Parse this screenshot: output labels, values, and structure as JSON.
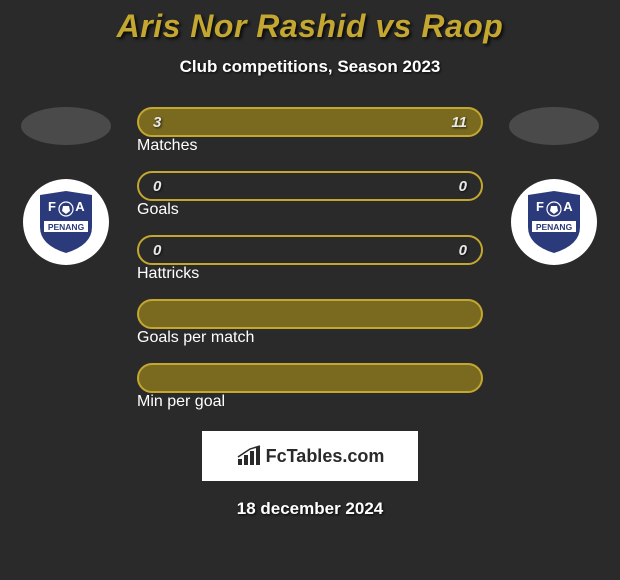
{
  "title": {
    "text": "Aris Nor Rashid vs Raop",
    "color": "#c4a730",
    "fontsize": 32
  },
  "subtitle": {
    "text": "Club competitions, Season 2023",
    "color": "#ffffff",
    "fontsize": 17
  },
  "players": {
    "left": {
      "oval_color": "#4a4a4a"
    },
    "right": {
      "oval_color": "#4a4a4a"
    }
  },
  "badge": {
    "bg": "#ffffff",
    "shield_fill": "#2b3a7a",
    "shield_text_top1": "F",
    "shield_text_top2": "A",
    "shield_text_bottom": "PENANG"
  },
  "bars": [
    {
      "label": "Matches",
      "left": "3",
      "right": "11",
      "fill": "#7a6a1f",
      "border": "#c4a730"
    },
    {
      "label": "Goals",
      "left": "0",
      "right": "0",
      "fill": "transparent",
      "border": "#c4a730"
    },
    {
      "label": "Hattricks",
      "left": "0",
      "right": "0",
      "fill": "transparent",
      "border": "#c4a730"
    },
    {
      "label": "Goals per match",
      "left": "",
      "right": "",
      "fill": "#7a6a1f",
      "border": "#c4a730"
    },
    {
      "label": "Min per goal",
      "left": "",
      "right": "",
      "fill": "#7a6a1f",
      "border": "#c4a730"
    }
  ],
  "logo": {
    "text": "FcTables.com",
    "bg": "#ffffff",
    "color": "#2a2a2a"
  },
  "date": {
    "text": "18 december 2024",
    "color": "#ffffff"
  },
  "background_color": "#2a2a2a"
}
